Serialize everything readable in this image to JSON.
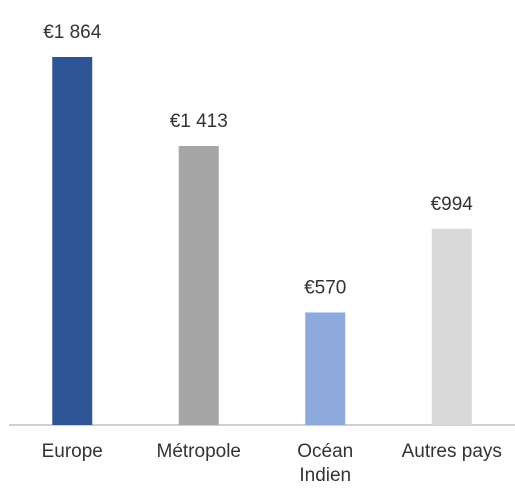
{
  "chart_data": {
    "type": "bar",
    "categories": [
      "Europe",
      "Métropole",
      "Océan Indien",
      "Autres pays"
    ],
    "values": [
      1864,
      1413,
      570,
      994
    ],
    "value_labels": [
      "€1 864",
      "€1 413",
      "€570",
      "€994"
    ],
    "colors": [
      "#2e5596",
      "#a6a6a6",
      "#8eaadc",
      "#d9d9d9"
    ],
    "grid": false
  }
}
